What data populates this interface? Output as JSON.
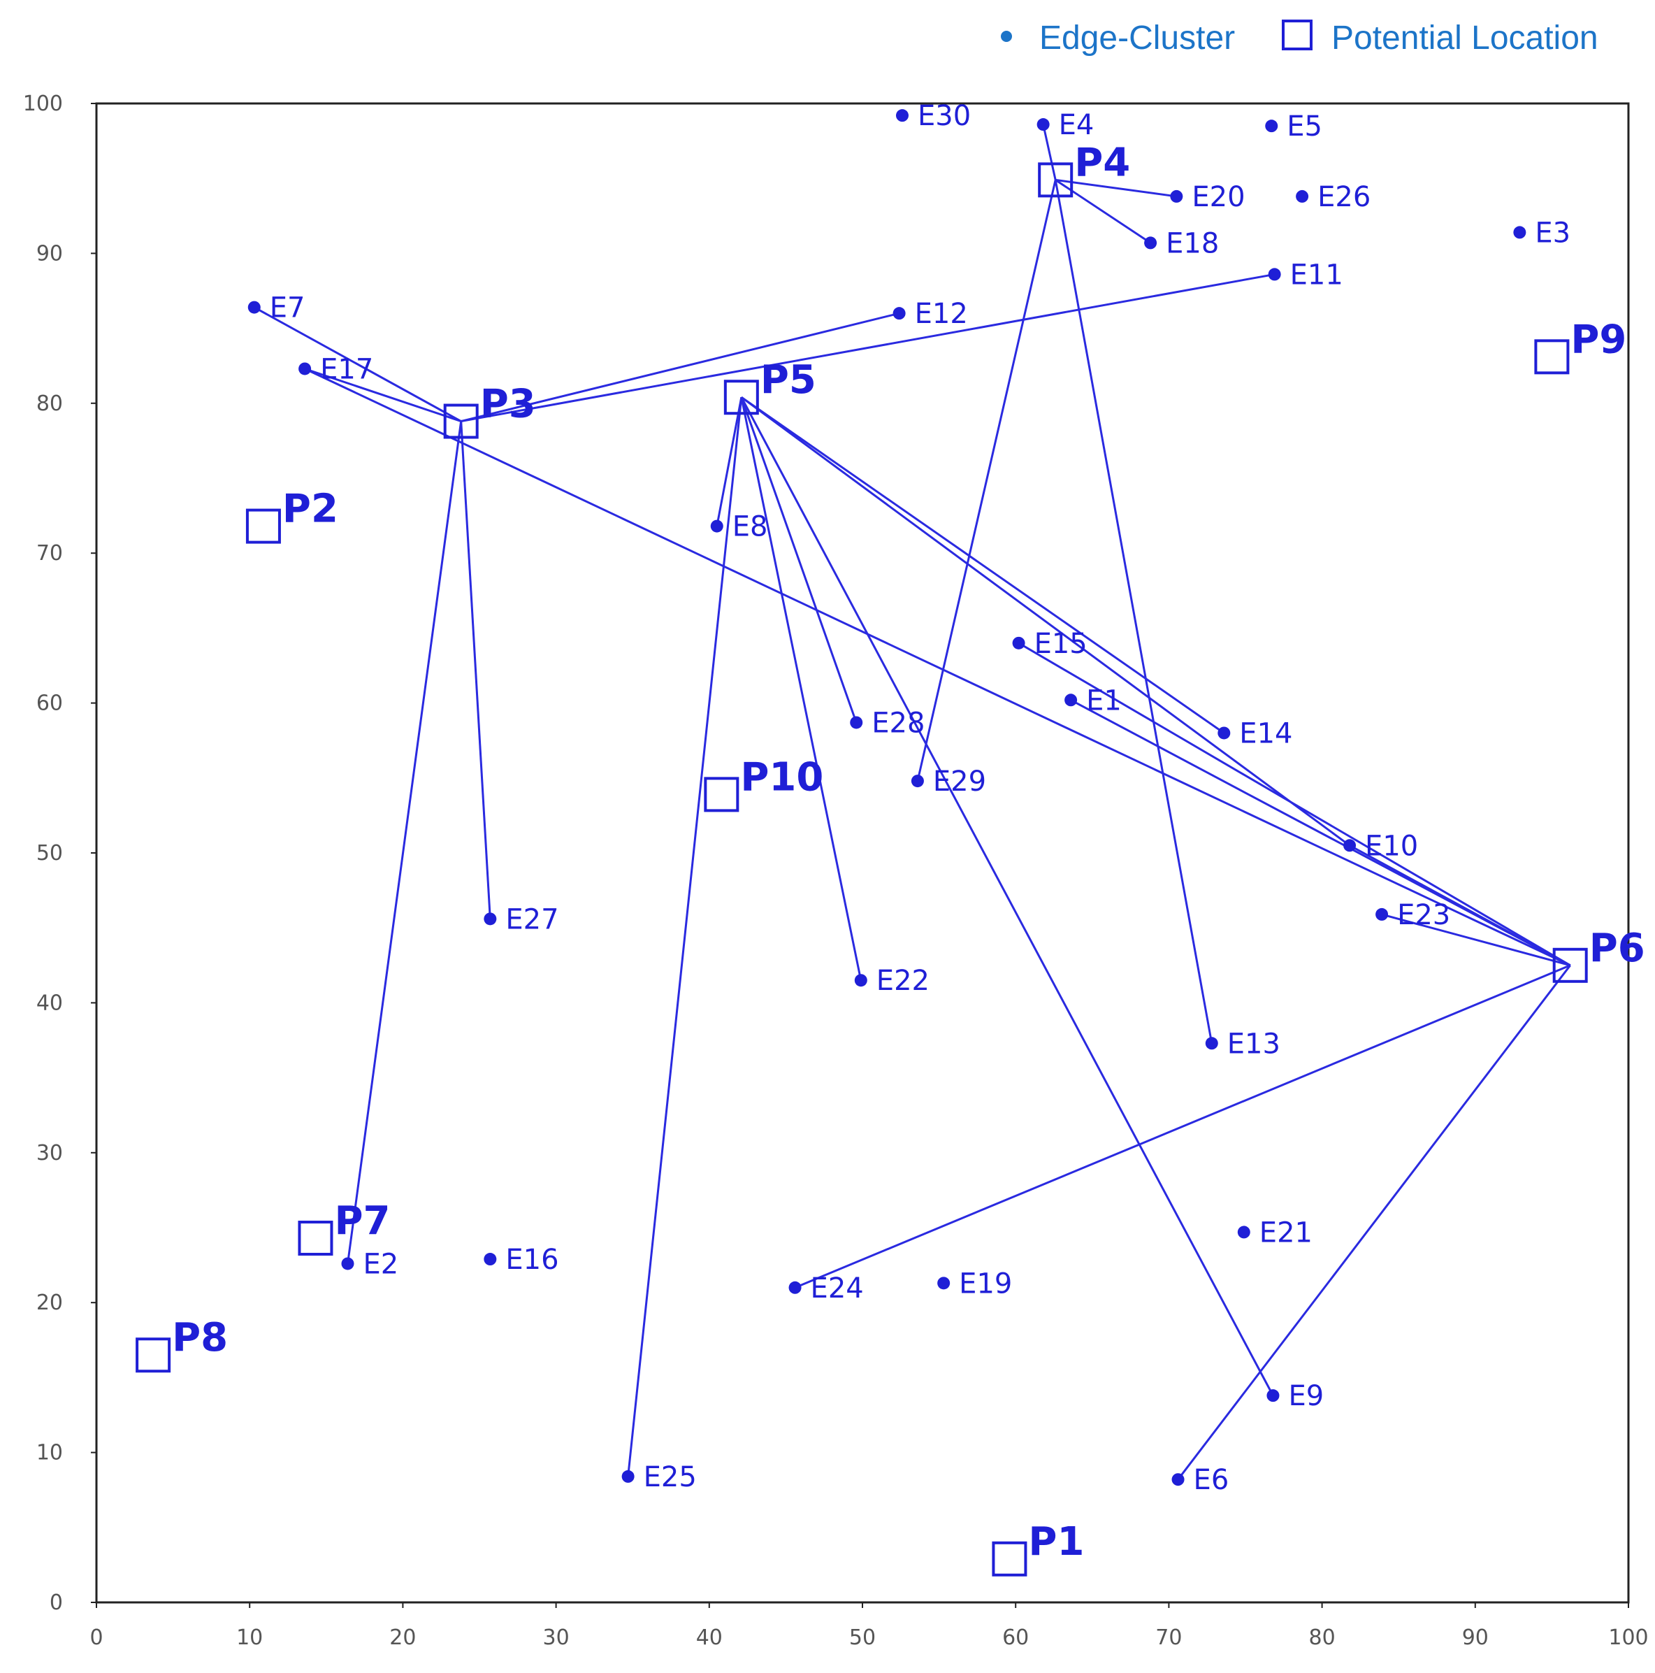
{
  "colors": {
    "marker": "#1f1fd6",
    "link": "#2a2ae0",
    "legend_text": "#1c74c8",
    "legend_dot": "#1c74c8",
    "legend_square": "#1f1fd6",
    "axis": "#222222",
    "tick_text": "#555555"
  },
  "legend": {
    "edge_label": "Edge-Cluster",
    "location_label": "Potential Location"
  },
  "chart_data": {
    "type": "scatter",
    "title": "",
    "xlabel": "",
    "ylabel": "",
    "xlim": [
      0,
      100
    ],
    "ylim": [
      0,
      100
    ],
    "xticks": [
      "0",
      "10",
      "20",
      "30",
      "40",
      "50",
      "60",
      "70",
      "80",
      "90",
      "100"
    ],
    "yticks": [
      "0",
      "10",
      "20",
      "30",
      "40",
      "50",
      "60",
      "70",
      "80",
      "90",
      "100"
    ],
    "grid": false,
    "legend_position": "top-right",
    "series": [
      {
        "name": "Edge-Cluster",
        "marker": "dot",
        "points": [
          {
            "label": "E1",
            "x": 63.6,
            "y": 60.2
          },
          {
            "label": "E2",
            "x": 16.4,
            "y": 22.6
          },
          {
            "label": "E3",
            "x": 92.9,
            "y": 91.4
          },
          {
            "label": "E4",
            "x": 61.8,
            "y": 98.6
          },
          {
            "label": "E5",
            "x": 76.7,
            "y": 98.5
          },
          {
            "label": "E6",
            "x": 70.6,
            "y": 8.2
          },
          {
            "label": "E7",
            "x": 10.3,
            "y": 86.4
          },
          {
            "label": "E8",
            "x": 40.5,
            "y": 71.8
          },
          {
            "label": "E9",
            "x": 76.8,
            "y": 13.8
          },
          {
            "label": "E10",
            "x": 81.8,
            "y": 50.5
          },
          {
            "label": "E11",
            "x": 76.9,
            "y": 88.6
          },
          {
            "label": "E12",
            "x": 52.4,
            "y": 86.0
          },
          {
            "label": "E13",
            "x": 72.8,
            "y": 37.3
          },
          {
            "label": "E14",
            "x": 73.6,
            "y": 58.0
          },
          {
            "label": "E15",
            "x": 60.2,
            "y": 64.0
          },
          {
            "label": "E16",
            "x": 25.7,
            "y": 22.9
          },
          {
            "label": "E17",
            "x": 13.6,
            "y": 82.3
          },
          {
            "label": "E18",
            "x": 68.8,
            "y": 90.7
          },
          {
            "label": "E19",
            "x": 55.3,
            "y": 21.3
          },
          {
            "label": "E20",
            "x": 70.5,
            "y": 93.8
          },
          {
            "label": "E21",
            "x": 74.9,
            "y": 24.7
          },
          {
            "label": "E22",
            "x": 49.9,
            "y": 41.5
          },
          {
            "label": "E23",
            "x": 83.9,
            "y": 45.9
          },
          {
            "label": "E24",
            "x": 45.6,
            "y": 21.0
          },
          {
            "label": "E25",
            "x": 34.7,
            "y": 8.4
          },
          {
            "label": "E26",
            "x": 78.7,
            "y": 93.8
          },
          {
            "label": "E27",
            "x": 25.7,
            "y": 45.6
          },
          {
            "label": "E28",
            "x": 49.6,
            "y": 58.7
          },
          {
            "label": "E29",
            "x": 53.6,
            "y": 54.8
          },
          {
            "label": "E30",
            "x": 52.6,
            "y": 99.2
          }
        ]
      },
      {
        "name": "Potential Location",
        "marker": "square",
        "points": [
          {
            "label": "P1",
            "x": 59.6,
            "y": 2.9
          },
          {
            "label": "P2",
            "x": 10.9,
            "y": 71.8
          },
          {
            "label": "P3",
            "x": 23.8,
            "y": 78.8
          },
          {
            "label": "P4",
            "x": 62.6,
            "y": 94.9
          },
          {
            "label": "P5",
            "x": 42.1,
            "y": 80.4
          },
          {
            "label": "P6",
            "x": 96.2,
            "y": 42.5
          },
          {
            "label": "P7",
            "x": 14.3,
            "y": 24.3
          },
          {
            "label": "P8",
            "x": 3.7,
            "y": 16.5
          },
          {
            "label": "P9",
            "x": 95.0,
            "y": 83.1
          },
          {
            "label": "P10",
            "x": 40.8,
            "y": 53.9
          }
        ]
      }
    ],
    "links": [
      [
        "P3",
        "E7"
      ],
      [
        "P3",
        "E17"
      ],
      [
        "P3",
        "E12"
      ],
      [
        "P3",
        "E11"
      ],
      [
        "P3",
        "E27"
      ],
      [
        "P3",
        "E2"
      ],
      [
        "P4",
        "E20"
      ],
      [
        "P4",
        "E18"
      ],
      [
        "P4",
        "E29"
      ],
      [
        "P4",
        "E13"
      ],
      [
        "P4",
        "E4"
      ],
      [
        "P5",
        "E8"
      ],
      [
        "P5",
        "E25"
      ],
      [
        "P5",
        "E28"
      ],
      [
        "P5",
        "E22"
      ],
      [
        "P5",
        "E9"
      ],
      [
        "P5",
        "E14"
      ],
      [
        "P5",
        "E10"
      ],
      [
        "P6",
        "E17"
      ],
      [
        "P6",
        "E1"
      ],
      [
        "P6",
        "E15"
      ],
      [
        "P6",
        "E23"
      ],
      [
        "P6",
        "E24"
      ],
      [
        "P6",
        "E6"
      ],
      [
        "P6",
        "E10"
      ]
    ]
  }
}
